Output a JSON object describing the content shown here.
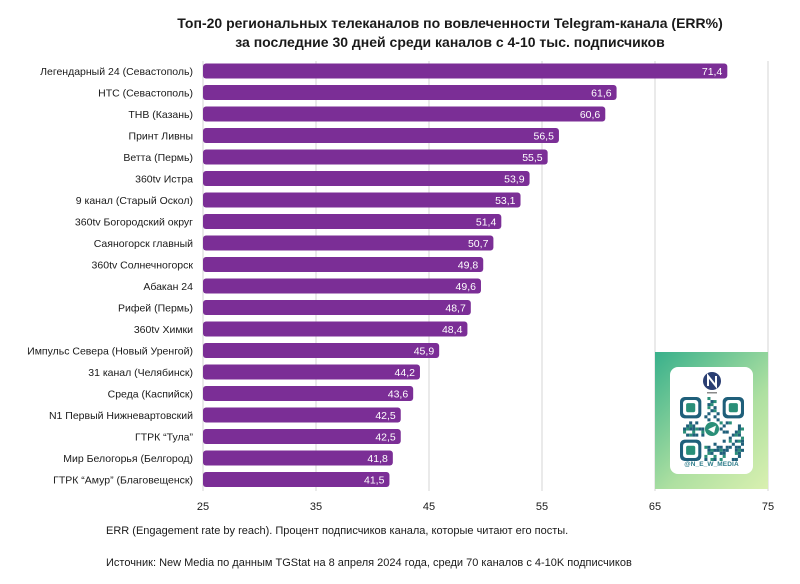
{
  "chart_data": {
    "type": "bar",
    "orientation": "horizontal",
    "title_lines": [
      "Топ-20 региональных телеканалов по вовлеченности Telegram-канала (ERR%)",
      "за последние 30 дней среди каналов с 4-10 тыс. подписчиков"
    ],
    "categories": [
      "Легендарный 24 (Севастополь)",
      "НТС (Севастополь)",
      "ТНВ (Казань)",
      "Принт Ливны",
      "Ветта (Пермь)",
      "360tv Истра",
      "9 канал (Старый Оскол)",
      "360tv Богородский округ",
      "Саяногорск главный",
      "360tv Солнечногорск",
      "Абакан 24",
      "Рифей (Пермь)",
      "360tv Химки",
      "Импульс Севера (Новый Уренгой)",
      "31 канал (Челябинск)",
      "Среда (Каспийск)",
      "N1 Первый Нижневартовский",
      "ГТРК “Тула”",
      "Мир Белогорья (Белгород)",
      "ГТРК “Амур” (Благовещенск)"
    ],
    "values": [
      71.4,
      61.6,
      60.6,
      56.5,
      55.5,
      53.9,
      53.1,
      51.4,
      50.7,
      49.8,
      49.6,
      48.7,
      48.4,
      45.9,
      44.2,
      43.6,
      42.5,
      42.5,
      41.8,
      41.5
    ],
    "value_labels": [
      "71,4",
      "61,6",
      "60,6",
      "56,5",
      "55,5",
      "53,9",
      "53,1",
      "51,4",
      "50,7",
      "49,8",
      "49,6",
      "48,7",
      "48,4",
      "45,9",
      "44,2",
      "43,6",
      "42,5",
      "42,5",
      "41,8",
      "41,5"
    ],
    "xlim": [
      25,
      75
    ],
    "xticks": [
      25,
      35,
      45,
      55,
      65,
      75
    ],
    "grid": true,
    "bar_color": "#7b2e96"
  },
  "footnote": "ERR (Engagement rate by reach). Процент подписчиков канала, которые читают его посты.",
  "source": "Источник: New Media по данным TGStat на 8 апреля 2024 года, среди 70 каналов с 4-10K подписчиков",
  "qr_card": {
    "handle": "@N_E_W_MEDIA",
    "gradient": [
      "#38b08b",
      "#d9f0b0"
    ]
  }
}
